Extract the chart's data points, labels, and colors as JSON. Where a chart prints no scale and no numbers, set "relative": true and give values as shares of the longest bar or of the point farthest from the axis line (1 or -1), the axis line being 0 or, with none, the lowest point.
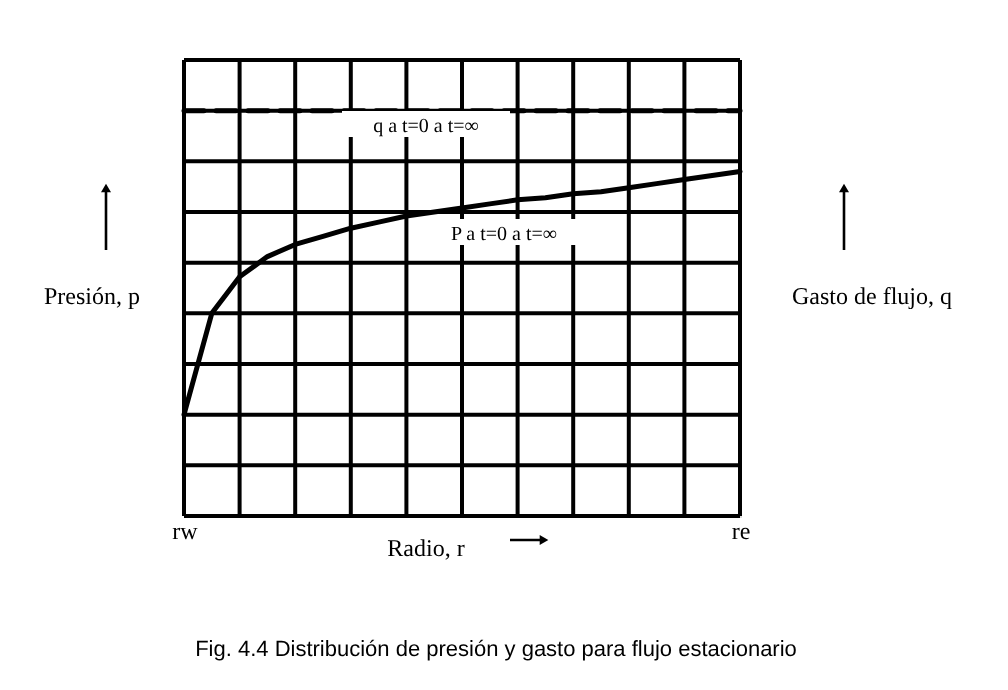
{
  "chart_data": {
    "type": "line",
    "relative": true,
    "title": "Fig. 4.4 Distribución de presión y gasto para flujo estacionario",
    "xlabel": "Radio, r",
    "ylabel": "Presión, p",
    "y2label": "Gasto de flujo, q",
    "categories": [
      "rw",
      null,
      null,
      null,
      null,
      null,
      null,
      null,
      null,
      null,
      null,
      null,
      null,
      null,
      null,
      null,
      null,
      null,
      null,
      null,
      "re"
    ],
    "grid": true,
    "legend": false,
    "series": [
      {
        "color": "#000000",
        "line_style": "dashed",
        "values": [
          1,
          1,
          1,
          1,
          1,
          1,
          1,
          1,
          1,
          1,
          1,
          1,
          1,
          1,
          1,
          1,
          1,
          1,
          1,
          1,
          1
        ]
      },
      {
        "color": "#000000",
        "line_style": "solid",
        "values": [
          0.25,
          0.5,
          0.59,
          0.64,
          0.67,
          0.69,
          0.71,
          0.725,
          0.74,
          0.75,
          0.76,
          0.77,
          0.78,
          0.785,
          0.795,
          0.8,
          0.81,
          0.82,
          0.83,
          0.84,
          0.85
        ]
      }
    ],
    "annotations": [
      "q a t=0 a t=∞",
      "P a t=0 a t=∞"
    ]
  }
}
